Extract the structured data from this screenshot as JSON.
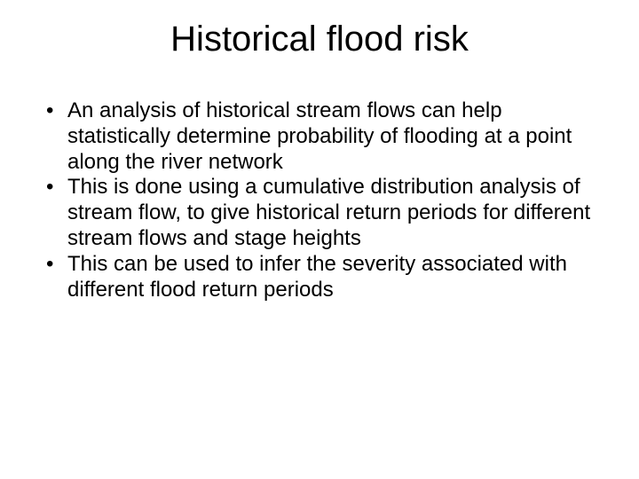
{
  "slide": {
    "title": "Historical flood risk",
    "bullets": [
      "An analysis of historical stream flows can help statistically determine probability of flooding at a point along the river network",
      "This is done using a cumulative distribution analysis of stream flow, to give historical return periods for different stream flows and stage heights",
      "This can be used to infer the severity associated with different flood return periods"
    ],
    "colors": {
      "background": "#ffffff",
      "text": "#000000"
    },
    "typography": {
      "title_fontsize": 40,
      "body_fontsize": 24,
      "font_family": "Arial"
    }
  }
}
